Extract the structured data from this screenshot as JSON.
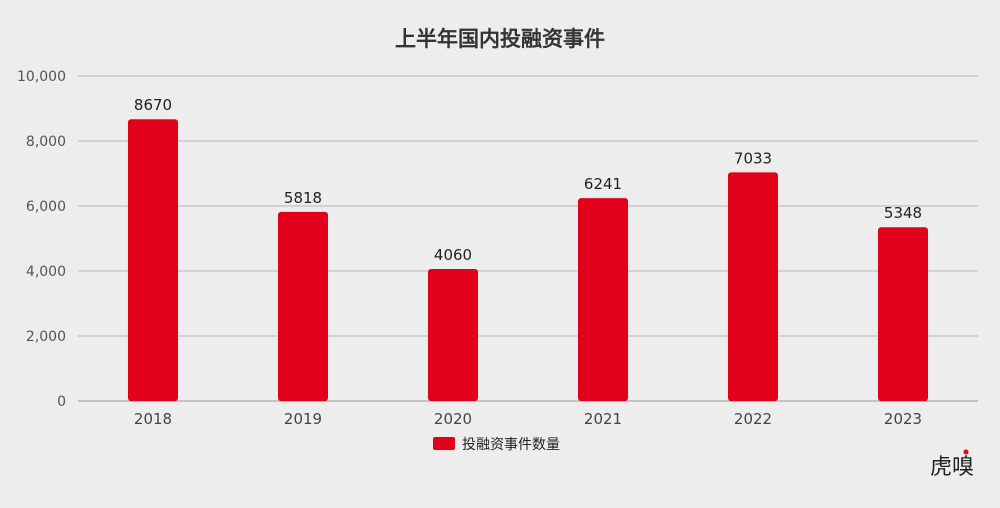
{
  "chart_data": {
    "type": "bar",
    "title": "上半年国内投融资事件",
    "categories": [
      "2018",
      "2019",
      "2020",
      "2021",
      "2022",
      "2023"
    ],
    "series": [
      {
        "name": "投融资事件数量",
        "values": [
          8670,
          5818,
          4060,
          6241,
          7033,
          5348
        ]
      }
    ],
    "ylim": [
      0,
      10000
    ],
    "yticks": [
      0,
      2000,
      4000,
      6000,
      8000,
      10000
    ],
    "ytick_labels": [
      "0",
      "2,000",
      "4,000",
      "6,000",
      "8,000",
      "10,000"
    ],
    "bar_color": "#e2001a",
    "grid": true,
    "legend_position": "bottom-center"
  },
  "brand": {
    "logo_text": "虎嗅",
    "logo_accent": "#e2001a"
  }
}
